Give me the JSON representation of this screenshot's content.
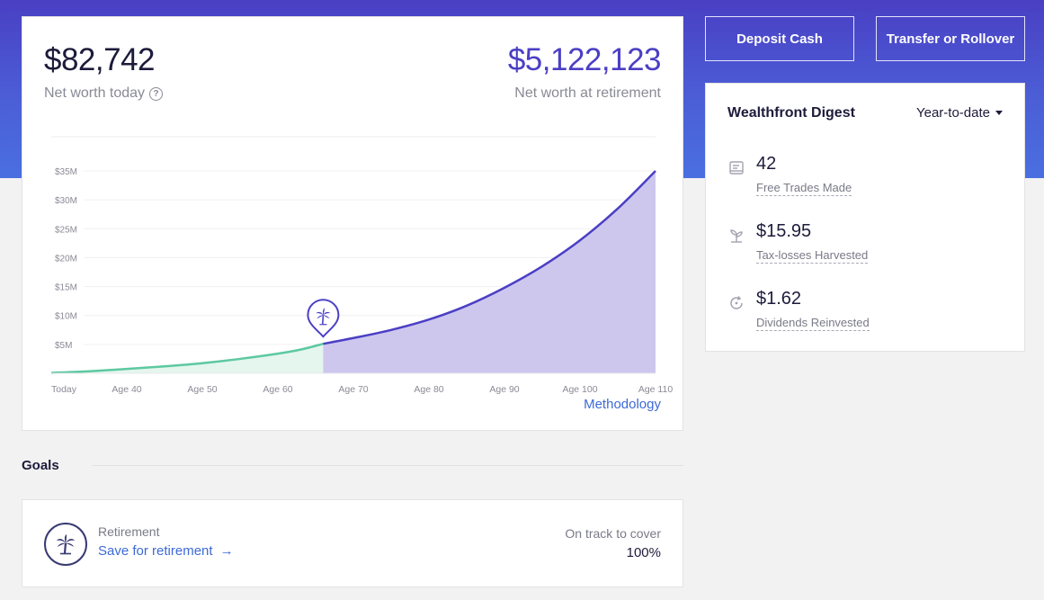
{
  "net_worth": {
    "today_value": "$82,742",
    "today_label": "Net worth today",
    "retirement_value": "$5,122,123",
    "retirement_label": "Net worth at retirement",
    "methodology_link": "Methodology"
  },
  "chart_data": {
    "type": "area",
    "y_ticks": [
      "$35M",
      "$30M",
      "$25M",
      "$20M",
      "$15M",
      "$10M",
      "$5M"
    ],
    "y_tick_values": [
      35,
      30,
      25,
      20,
      15,
      10,
      5
    ],
    "x_ticks": [
      "Today",
      "Age 40",
      "Age 50",
      "Age 60",
      "Age 70",
      "Age 80",
      "Age 90",
      "Age 100",
      "Age 110"
    ],
    "x_tick_ages": [
      30,
      40,
      50,
      60,
      70,
      80,
      90,
      100,
      110
    ],
    "ylim": [
      0,
      35
    ],
    "xlim": [
      30,
      110
    ],
    "retirement_age": 66,
    "series": [
      {
        "x": [
          30,
          35,
          40,
          45,
          50,
          55,
          60,
          63,
          66,
          70,
          75,
          80,
          85,
          90,
          95,
          100,
          105,
          110
        ],
        "y": [
          0.08,
          0.35,
          0.75,
          1.2,
          1.75,
          2.5,
          3.4,
          4.1,
          5.1,
          6.1,
          7.5,
          9.3,
          11.7,
          14.8,
          18.5,
          23.0,
          28.5,
          35.0
        ]
      }
    ],
    "colors": {
      "pre_retirement": "#5cc9a0",
      "post_retirement": "#4b3fc4",
      "post_fill": "#cdc7ee",
      "pre_fill": "#e4f6ee"
    }
  },
  "actions": {
    "deposit_label": "Deposit Cash",
    "transfer_label": "Transfer or Rollover"
  },
  "digest": {
    "title": "Wealthfront Digest",
    "period": "Year-to-date",
    "items": [
      {
        "value": "42",
        "label": "Free Trades Made",
        "icon": "receipt-icon"
      },
      {
        "value": "$15.95",
        "label": "Tax-losses Harvested",
        "icon": "plant-icon"
      },
      {
        "value": "$1.62",
        "label": "Dividends Reinvested",
        "icon": "refresh-icon"
      }
    ]
  },
  "goals": {
    "title": "Goals",
    "items": [
      {
        "category": "Retirement",
        "link": "Save for retirement",
        "link_arrow": "→",
        "track_label": "On track to cover",
        "track_value": "100%"
      }
    ]
  },
  "colors": {
    "brand": "#4b3fc4",
    "link": "#3d6ad6",
    "accent_green": "#5cc9a0"
  }
}
